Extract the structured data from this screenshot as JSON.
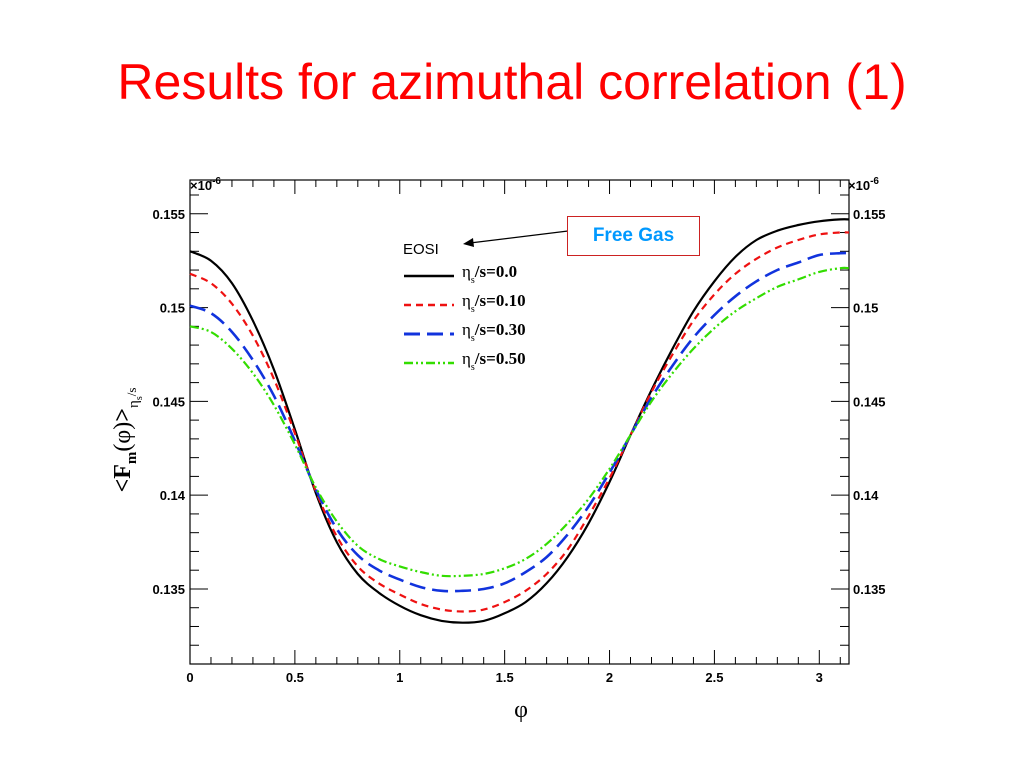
{
  "title": "Results for azimuthal correlation (1)",
  "annotation": {
    "text": "Free Gas",
    "text_color": "#0099ff",
    "border_color": "#cc2222"
  },
  "chart_data": {
    "type": "line",
    "legend_title": "EOSI",
    "legend_placement": "top-center",
    "exponent_label": "×10",
    "exponent_power": "-6",
    "xlabel": "φ",
    "ylabel": "<Fm(φ)>ηs/s",
    "xlim": [
      0,
      3.14159
    ],
    "ylim": [
      0.131,
      0.1568
    ],
    "x_ticks": [
      0,
      0.5,
      1,
      1.5,
      2,
      2.5,
      3
    ],
    "x_tick_labels": [
      "0",
      "0.5",
      "1",
      "1.5",
      "2",
      "2.5",
      "3"
    ],
    "y_ticks": [
      0.135,
      0.14,
      0.145,
      0.15,
      0.155
    ],
    "y_tick_labels": [
      "0.135",
      "0.14",
      "0.145",
      "0.15",
      "0.155"
    ],
    "grid": false,
    "x": [
      0.0,
      0.1,
      0.2,
      0.3,
      0.4,
      0.5,
      0.6,
      0.7,
      0.8,
      0.9,
      1.0,
      1.1,
      1.2,
      1.3,
      1.4,
      1.5,
      1.6,
      1.7,
      1.8,
      1.9,
      2.0,
      2.1,
      2.2,
      2.3,
      2.4,
      2.5,
      2.6,
      2.7,
      2.8,
      2.9,
      3.0,
      3.1,
      3.14159
    ],
    "series": [
      {
        "name": "η_s/s=0.0",
        "legend_sub": "s",
        "legend_rest": "/s=0.0",
        "color": "#000000",
        "dash": "solid",
        "values": [
          0.153,
          0.1525,
          0.1513,
          0.1493,
          0.1467,
          0.1435,
          0.1401,
          0.1375,
          0.1358,
          0.1348,
          0.1341,
          0.1336,
          0.1333,
          0.1332,
          0.1333,
          0.1337,
          0.1343,
          0.1353,
          0.1367,
          0.1385,
          0.1407,
          0.1432,
          0.1456,
          0.1478,
          0.1498,
          0.1514,
          0.1527,
          0.1536,
          0.1541,
          0.1544,
          0.1546,
          0.1547,
          0.1547
        ]
      },
      {
        "name": "η_s/s=0.10",
        "legend_sub": "s",
        "legend_rest": "/s=0.10",
        "color": "#ee1111",
        "dash": "dashed",
        "values": [
          0.1518,
          0.1513,
          0.1502,
          0.1485,
          0.1462,
          0.1433,
          0.1402,
          0.1378,
          0.1362,
          0.1353,
          0.1347,
          0.1342,
          0.1339,
          0.1338,
          0.1339,
          0.1343,
          0.1349,
          0.1358,
          0.1371,
          0.1389,
          0.1409,
          0.1432,
          0.1455,
          0.1475,
          0.1493,
          0.1507,
          0.1518,
          0.1526,
          0.1532,
          0.1536,
          0.1539,
          0.154,
          0.154
        ]
      },
      {
        "name": "η_s/s=0.30",
        "legend_sub": "s",
        "legend_rest": "/s=0.30",
        "color": "#1133dd",
        "dash": "longdash",
        "values": [
          0.1501,
          0.1497,
          0.1487,
          0.1472,
          0.1453,
          0.1429,
          0.1403,
          0.1382,
          0.1368,
          0.136,
          0.1355,
          0.1351,
          0.1349,
          0.1349,
          0.135,
          0.1353,
          0.1359,
          0.1367,
          0.1379,
          0.1394,
          0.1412,
          0.1432,
          0.1452,
          0.1469,
          0.1484,
          0.1496,
          0.1506,
          0.1514,
          0.152,
          0.1524,
          0.1528,
          0.1529,
          0.1529
        ]
      },
      {
        "name": "η_s/s=0.50",
        "legend_sub": "s",
        "legend_rest": "/s=0.50",
        "color": "#33dd00",
        "dash": "dashdotdot",
        "values": [
          0.149,
          0.1487,
          0.1478,
          0.1465,
          0.1448,
          0.1427,
          0.1404,
          0.1386,
          0.1373,
          0.1366,
          0.1362,
          0.1359,
          0.1357,
          0.1357,
          0.1358,
          0.1361,
          0.1366,
          0.1374,
          0.1385,
          0.1398,
          0.1414,
          0.1432,
          0.145,
          0.1465,
          0.1478,
          0.1489,
          0.1498,
          0.1505,
          0.1511,
          0.1515,
          0.1519,
          0.1521,
          0.1521
        ]
      }
    ]
  }
}
